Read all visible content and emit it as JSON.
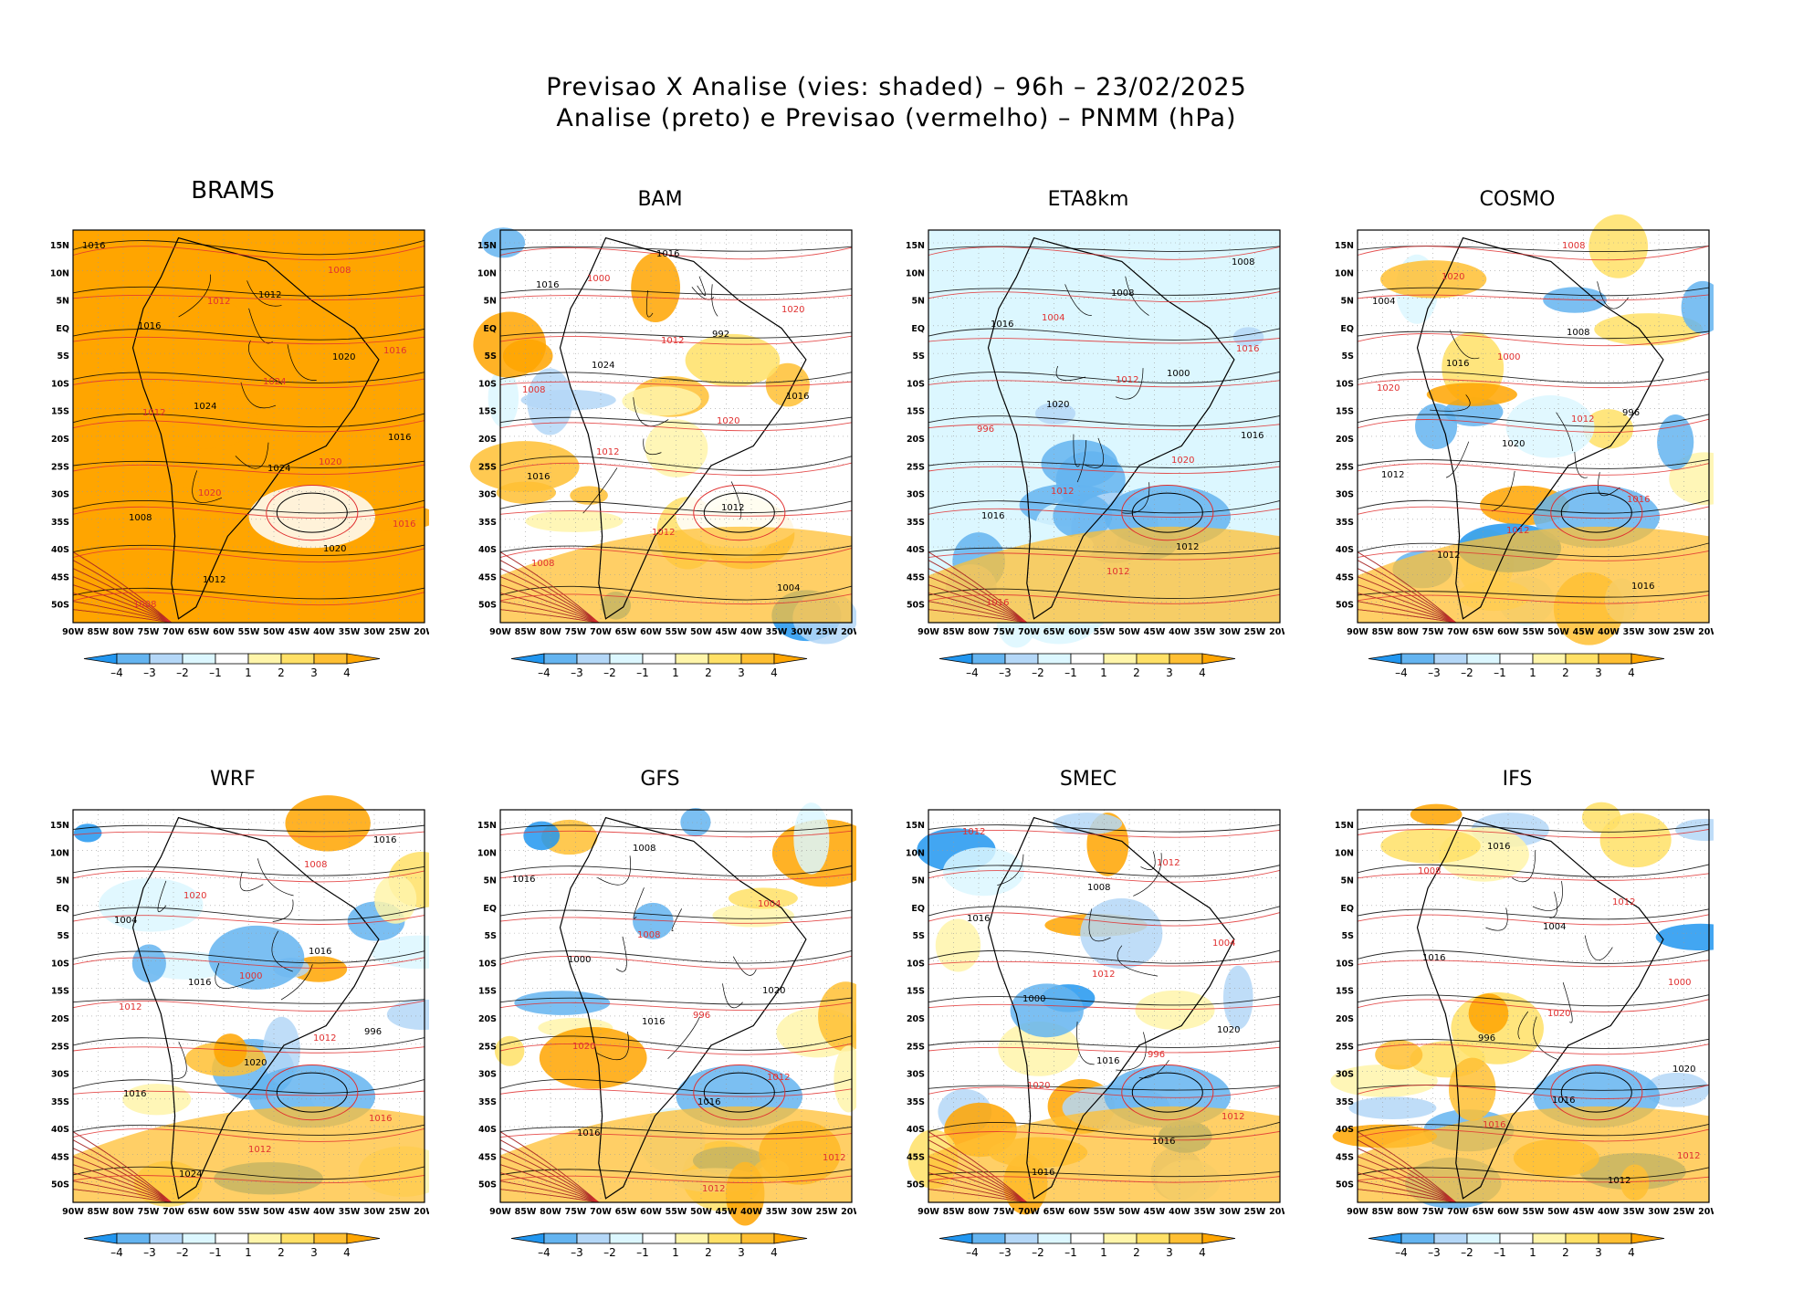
{
  "header": {
    "title_line1": "Previsao X Analise (vies: shaded) – 96h – 23/02/2025",
    "title_line2": "Analise (preto) e Previsao (vermelho) – PNMM (hPa)"
  },
  "axes": {
    "lat_ticks": [
      "15N",
      "10N",
      "5N",
      "EQ",
      "5S",
      "10S",
      "15S",
      "20S",
      "25S",
      "30S",
      "35S",
      "40S",
      "45S",
      "50S"
    ],
    "lon_ticks": [
      "90W",
      "85W",
      "80W",
      "75W",
      "70W",
      "65W",
      "60W",
      "55W",
      "50W",
      "45W",
      "40W",
      "35W",
      "30W",
      "25W",
      "20W"
    ]
  },
  "colorbar": {
    "labels": [
      "–4",
      "–3",
      "–2",
      "–1",
      "1",
      "2",
      "3",
      "4"
    ],
    "colors": [
      "#2196f0",
      "#64b4f0",
      "#b4d7f7",
      "#dcf7ff",
      "#ffffff",
      "#fff5aa",
      "#ffe066",
      "#ffbf33",
      "#ffa500"
    ]
  },
  "contour_colors": {
    "analysis": "#000000",
    "forecast": "#e03030"
  },
  "panels": [
    {
      "name": "BRAMS",
      "labels": [
        "1016",
        "1012",
        "1020",
        "1012",
        "1024",
        "1016",
        "1012",
        "1008",
        "1016",
        "1024",
        "1016",
        "1020",
        "1020",
        "1008",
        "1012",
        "1016",
        "1024",
        "1020",
        "1008"
      ]
    },
    {
      "name": "BAM",
      "labels": [
        "1016",
        "1012",
        "1016",
        "1012",
        "1012",
        "1008",
        "1016",
        "1020",
        "1024",
        "1020",
        "1016",
        "1012",
        "1004",
        "1000",
        "992",
        "1008"
      ]
    },
    {
      "name": "ETA8km",
      "labels": [
        "1016",
        "1012",
        "1016",
        "1012",
        "1012",
        "1016",
        "1008",
        "1016",
        "1020",
        "1020",
        "1016",
        "1012",
        "1008",
        "1004",
        "1000",
        "996"
      ]
    },
    {
      "name": "COSMO",
      "labels": [
        "1016",
        "1012",
        "1012",
        "1012",
        "1016",
        "1020",
        "1008",
        "1020",
        "1020",
        "1016",
        "1012",
        "1008",
        "1004",
        "1000",
        "996"
      ]
    },
    {
      "name": "WRF",
      "labels": [
        "1016",
        "1012",
        "1016",
        "1012",
        "1016",
        "1020",
        "1016",
        "1012",
        "1020",
        "1016",
        "1024",
        "1008",
        "1004",
        "1000",
        "996"
      ]
    },
    {
      "name": "GFS",
      "labels": [
        "1016",
        "1012",
        "1016",
        "1012",
        "1016",
        "1008",
        "1020",
        "1020",
        "1016",
        "1012",
        "1008",
        "1004",
        "1000",
        "996"
      ]
    },
    {
      "name": "SMEC",
      "labels": [
        "1016",
        "1012",
        "1016",
        "1012",
        "1016",
        "1012",
        "1020",
        "1020",
        "1016",
        "1012",
        "1008",
        "1004",
        "1000",
        "996"
      ]
    },
    {
      "name": "IFS",
      "labels": [
        "1016",
        "1012",
        "1016",
        "1012",
        "1016",
        "1020",
        "1020",
        "1016",
        "1012",
        "1008",
        "1004",
        "1000",
        "996"
      ]
    }
  ]
}
